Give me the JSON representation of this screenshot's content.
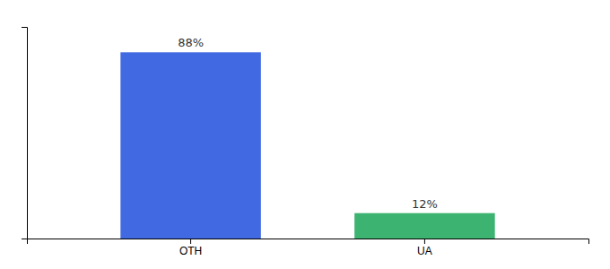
{
  "chart_data": {
    "type": "bar",
    "categories": [
      "OTH",
      "UA"
    ],
    "values": [
      88,
      12
    ],
    "value_labels": [
      "88%",
      "12%"
    ],
    "colors": [
      "#4169E1",
      "#3CB371"
    ],
    "ylim": [
      0,
      100
    ],
    "tick_labels": "x",
    "grid": false
  }
}
